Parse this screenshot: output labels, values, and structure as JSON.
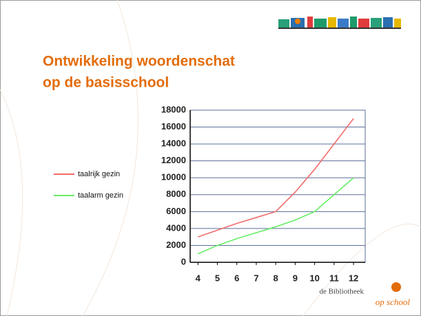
{
  "header": {
    "title_lines": [
      "Ontwikkeling woordenschat",
      "op de basisschool"
    ]
  },
  "chart_data": {
    "type": "line",
    "x": [
      4,
      5,
      6,
      7,
      8,
      9,
      10,
      11,
      12
    ],
    "series": [
      {
        "name": "taalrijk gezin",
        "color": "#f26b6b",
        "values": [
          3000,
          3800,
          4600,
          5300,
          6000,
          8300,
          11000,
          14000,
          17000
        ]
      },
      {
        "name": "taalarm gezin",
        "color": "#66ee66",
        "values": [
          1000,
          2000,
          2800,
          3500,
          4200,
          5000,
          6000,
          8000,
          10000
        ]
      }
    ],
    "xlim": [
      3.6,
      12.6
    ],
    "xticks": [
      4,
      5,
      6,
      7,
      8,
      9,
      10,
      11,
      12
    ],
    "ylim": [
      0,
      18000
    ],
    "yticks": [
      0,
      2000,
      4000,
      6000,
      8000,
      10000,
      12000,
      14000,
      16000,
      18000
    ],
    "grid": true,
    "legend": "left"
  },
  "footer": {
    "brand": "de Bibliotheek",
    "tagline": "op school"
  }
}
